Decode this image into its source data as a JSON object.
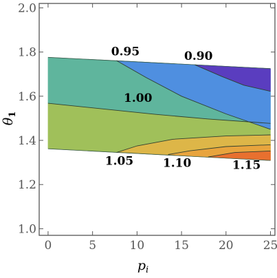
{
  "chart_data": {
    "type": "contour",
    "x_label": "p",
    "x_label_sub": "i",
    "y_label": "θ",
    "y_label_sub": "1",
    "xlim": [
      -1,
      25.5
    ],
    "ylim": [
      0.97,
      2.02
    ],
    "x_ticks": [
      "0",
      "5",
      "10",
      "15",
      "20",
      "25"
    ],
    "x_tick_values": [
      0,
      5,
      10,
      15,
      20,
      25
    ],
    "y_ticks": [
      "1.0",
      "1.2",
      "1.4",
      "1.6",
      "1.8",
      "2.0"
    ],
    "y_tick_values": [
      1.0,
      1.2,
      1.4,
      1.6,
      1.8,
      2.0
    ],
    "frame_color": "#555555",
    "domain": {
      "top": [
        [
          0,
          1.776
        ],
        [
          25,
          1.725
        ]
      ],
      "bottom": [
        [
          0,
          1.362
        ],
        [
          25,
          1.309
        ]
      ]
    },
    "regions": [
      {
        "name": "above-1.00",
        "color": "#5fb59d",
        "points": [
          [
            0,
            1.776
          ],
          [
            7.7,
            1.761
          ],
          [
            25,
            1.725
          ],
          [
            25,
            1.477
          ],
          [
            18,
            1.497
          ],
          [
            12,
            1.518
          ],
          [
            6,
            1.543
          ],
          [
            0,
            1.568
          ]
        ]
      },
      {
        "name": "1.00-1.05",
        "color": "#a0c05a",
        "points": [
          [
            0,
            1.568
          ],
          [
            6,
            1.543
          ],
          [
            12,
            1.518
          ],
          [
            18,
            1.497
          ],
          [
            25,
            1.477
          ],
          [
            25,
            1.309
          ],
          [
            7.7,
            1.345
          ],
          [
            0,
            1.362
          ]
        ]
      },
      {
        "name": "0.95-0.90",
        "color": "#4f8fe0",
        "points": [
          [
            7.7,
            1.761
          ],
          [
            16.5,
            1.742
          ],
          [
            25,
            1.725
          ],
          [
            25,
            1.45
          ],
          [
            20,
            1.52
          ],
          [
            15,
            1.6
          ],
          [
            11,
            1.685
          ]
        ]
      },
      {
        "name": "below-0.90",
        "color": "#5a3dbf",
        "points": [
          [
            16.5,
            1.742
          ],
          [
            25,
            1.725
          ],
          [
            25,
            1.622
          ],
          [
            22,
            1.65
          ],
          [
            19.5,
            1.69
          ]
        ]
      },
      {
        "name": "1.05-1.10",
        "color": "#ddb648",
        "points": [
          [
            7.7,
            1.345
          ],
          [
            10,
            1.375
          ],
          [
            14,
            1.405
          ],
          [
            20,
            1.42
          ],
          [
            25,
            1.425
          ],
          [
            25,
            1.309
          ]
        ]
      },
      {
        "name": "1.10-1.15",
        "color": "#e8a43d",
        "points": [
          [
            13.5,
            1.336
          ],
          [
            16,
            1.353
          ],
          [
            20,
            1.372
          ],
          [
            25,
            1.38
          ],
          [
            25,
            1.309
          ]
        ]
      },
      {
        "name": "above-1.15",
        "color": "#e8702f",
        "points": [
          [
            18,
            1.325
          ],
          [
            21,
            1.345
          ],
          [
            25,
            1.352
          ],
          [
            25,
            1.309
          ]
        ]
      }
    ],
    "contours": [
      {
        "level": "0.95",
        "points": [
          [
            7.7,
            1.761
          ],
          [
            11,
            1.685
          ],
          [
            15,
            1.6
          ],
          [
            20,
            1.52
          ],
          [
            25,
            1.45
          ]
        ]
      },
      {
        "level": "0.90",
        "points": [
          [
            16.5,
            1.742
          ],
          [
            19.5,
            1.69
          ],
          [
            22,
            1.65
          ],
          [
            25,
            1.622
          ]
        ]
      },
      {
        "level": "1.00",
        "points": [
          [
            0,
            1.568
          ],
          [
            6,
            1.543
          ],
          [
            12,
            1.518
          ],
          [
            18,
            1.497
          ],
          [
            25,
            1.477
          ]
        ]
      },
      {
        "level": "1.05",
        "points": [
          [
            7.7,
            1.345
          ],
          [
            10,
            1.375
          ],
          [
            14,
            1.405
          ],
          [
            20,
            1.42
          ],
          [
            25,
            1.425
          ]
        ]
      },
      {
        "level": "1.10",
        "points": [
          [
            13.5,
            1.336
          ],
          [
            16,
            1.353
          ],
          [
            20,
            1.372
          ],
          [
            25,
            1.38
          ]
        ]
      },
      {
        "level": "1.15",
        "points": [
          [
            18,
            1.325
          ],
          [
            21,
            1.345
          ],
          [
            25,
            1.352
          ]
        ]
      }
    ],
    "contour_labels": [
      {
        "text": "0.95",
        "x": 7.1,
        "y": 1.785
      },
      {
        "text": "0.90",
        "x": 15.3,
        "y": 1.765
      },
      {
        "text": "1.00",
        "x": 8.5,
        "y": 1.575
      },
      {
        "text": "1.05",
        "x": 6.4,
        "y": 1.29
      },
      {
        "text": "1.10",
        "x": 12.9,
        "y": 1.28
      },
      {
        "text": "1.15",
        "x": 20.7,
        "y": 1.27
      }
    ]
  }
}
